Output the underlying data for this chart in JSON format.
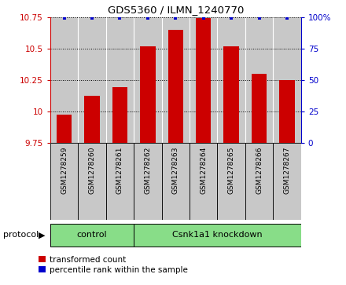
{
  "title": "GDS5360 / ILMN_1240770",
  "samples": [
    "GSM1278259",
    "GSM1278260",
    "GSM1278261",
    "GSM1278262",
    "GSM1278263",
    "GSM1278264",
    "GSM1278265",
    "GSM1278266",
    "GSM1278267"
  ],
  "red_values": [
    9.97,
    10.12,
    10.19,
    10.52,
    10.65,
    10.74,
    10.52,
    10.3,
    10.25
  ],
  "ylim_left": [
    9.75,
    10.75
  ],
  "ylim_right": [
    0,
    100
  ],
  "yticks_left": [
    9.75,
    10.0,
    10.25,
    10.5,
    10.75
  ],
  "yticks_right": [
    0,
    25,
    50,
    75,
    100
  ],
  "ytick_labels_left": [
    "9.75",
    "10",
    "10.25",
    "10.5",
    "10.75"
  ],
  "ytick_labels_right": [
    "0",
    "25",
    "50",
    "75",
    "100%"
  ],
  "control_count": 3,
  "knockdown_count": 6,
  "group_labels": [
    "control",
    "Csnk1a1 knockdown"
  ],
  "protocol_label": "protocol",
  "bar_color": "#cc0000",
  "blue_color": "#0000cc",
  "bg_color": "#ffffff",
  "panel_bg": "#c8c8c8",
  "left_axis_color": "#cc0000",
  "right_axis_color": "#0000cc",
  "green_color": "#88dd88",
  "legend_red_label": "transformed count",
  "legend_blue_label": "percentile rank within the sample",
  "bar_width": 0.55
}
